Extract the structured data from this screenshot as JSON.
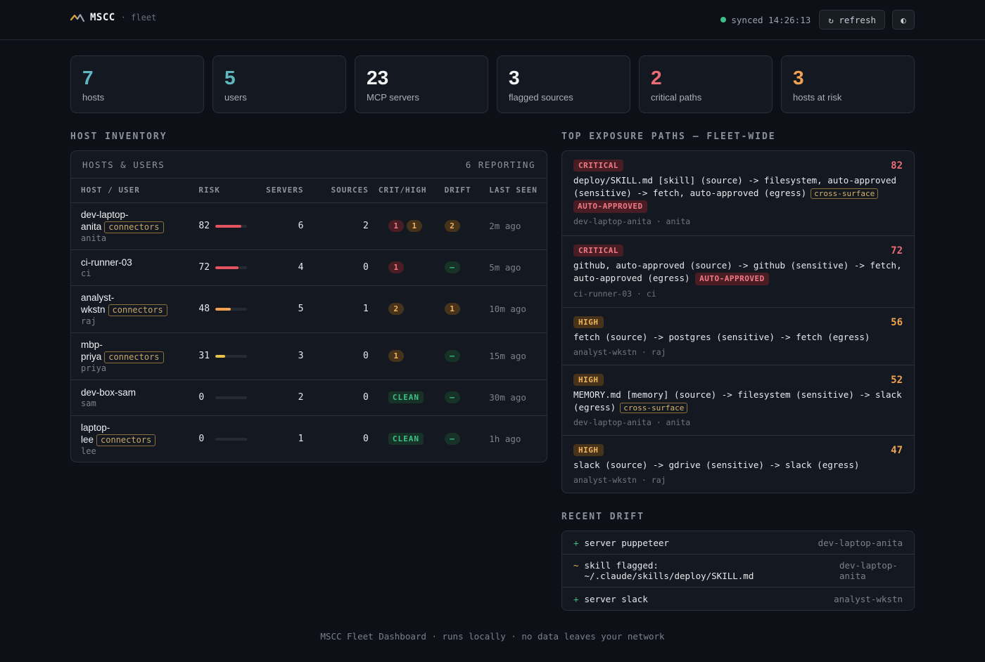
{
  "header": {
    "brand": "MSCC",
    "context": "· fleet",
    "sync_label": "synced 14:26:13",
    "refresh_label": "↻ refresh",
    "theme_icon": "◐"
  },
  "stats": [
    {
      "value": "7",
      "label": "hosts",
      "color": "#5fb8c0"
    },
    {
      "value": "5",
      "label": "users",
      "color": "#5fb8c0"
    },
    {
      "value": "23",
      "label": "MCP servers",
      "color": "#f2f3f5"
    },
    {
      "value": "3",
      "label": "flagged sources",
      "color": "#f2f3f5"
    },
    {
      "value": "2",
      "label": "critical paths",
      "color": "#ec6b74"
    },
    {
      "value": "3",
      "label": "hosts at risk",
      "color": "#f0a250"
    }
  ],
  "host_inventory": {
    "section_title": "HOST INVENTORY",
    "panel_title": "HOSTS & USERS",
    "reporting": "6 REPORTING",
    "columns": [
      "HOST / USER",
      "RISK",
      "SERVERS",
      "SOURCES",
      "CRIT/HIGH",
      "DRIFT",
      "LAST SEEN"
    ],
    "rows": [
      {
        "host_l1": "dev-laptop-",
        "host_l2": "anita",
        "tag": "connectors",
        "user": "anita",
        "risk": "82",
        "risk_level": 0.82,
        "risk_color": "#e5535f",
        "servers": "6",
        "sources": "2",
        "crit": "1",
        "high": "1",
        "drift": "2",
        "seen": "2m ago"
      },
      {
        "host_l1": "ci-runner-03",
        "host_l2": "",
        "tag": "",
        "user": "ci",
        "risk": "72",
        "risk_level": 0.72,
        "risk_color": "#e5535f",
        "servers": "4",
        "sources": "0",
        "crit": "1",
        "high": "",
        "drift": "–",
        "seen": "5m ago"
      },
      {
        "host_l1": "analyst-",
        "host_l2": "wkstn",
        "tag": "connectors",
        "user": "raj",
        "risk": "48",
        "risk_level": 0.48,
        "risk_color": "#f0a250",
        "servers": "5",
        "sources": "1",
        "crit": "",
        "high": "2",
        "drift": "1",
        "seen": "10m ago"
      },
      {
        "host_l1": "mbp-",
        "host_l2": "priya",
        "tag": "connectors",
        "user": "priya",
        "risk": "31",
        "risk_level": 0.31,
        "risk_color": "#e8c24a",
        "servers": "3",
        "sources": "0",
        "crit": "",
        "high": "1",
        "drift": "–",
        "seen": "15m ago"
      },
      {
        "host_l1": "dev-box-sam",
        "host_l2": "",
        "tag": "",
        "user": "sam",
        "risk": "0",
        "risk_level": 0,
        "risk_color": "#3fbf86",
        "servers": "2",
        "sources": "0",
        "crit": "",
        "high": "",
        "clean": "CLEAN",
        "drift": "–",
        "seen": "30m ago"
      },
      {
        "host_l1": "laptop-",
        "host_l2": "lee",
        "tag": "connectors",
        "user": "lee",
        "risk": "0",
        "risk_level": 0,
        "risk_color": "#3fbf86",
        "servers": "1",
        "sources": "0",
        "crit": "",
        "high": "",
        "clean": "CLEAN",
        "drift": "–",
        "seen": "1h ago"
      }
    ]
  },
  "exposure_paths": {
    "section_title": "TOP EXPOSURE PATHS — FLEET-WIDE",
    "items": [
      {
        "severity": "CRITICAL",
        "sev_class": "critical",
        "score": "82",
        "score_color": "#ec6b74",
        "text": "deploy/SKILL.md [skill] (source) -> filesystem, auto-approved (sensitive) -> fetch, auto-approved (egress)",
        "cross": "cross-surface",
        "auto": "AUTO-APPROVED",
        "meta": "dev-laptop-anita · anita"
      },
      {
        "severity": "CRITICAL",
        "sev_class": "critical",
        "score": "72",
        "score_color": "#ec6b74",
        "text": "github, auto-approved (source) -> github (sensitive) -> fetch, auto-approved (egress)",
        "cross": "",
        "auto": "AUTO-APPROVED",
        "meta": "ci-runner-03 · ci"
      },
      {
        "severity": "HIGH",
        "sev_class": "high",
        "score": "56",
        "score_color": "#f0a250",
        "text": "fetch (source) -> postgres (sensitive) -> fetch (egress)",
        "cross": "",
        "auto": "",
        "meta": "analyst-wkstn · raj"
      },
      {
        "severity": "HIGH",
        "sev_class": "high",
        "score": "52",
        "score_color": "#f0a250",
        "text": "MEMORY.md [memory] (source) -> filesystem (sensitive) -> slack (egress)",
        "cross": "cross-surface",
        "auto": "",
        "meta": "dev-laptop-anita · anita"
      },
      {
        "severity": "HIGH",
        "sev_class": "high",
        "score": "47",
        "score_color": "#f0a250",
        "text": "slack (source) -> gdrive (sensitive) -> slack (egress)",
        "cross": "",
        "auto": "",
        "meta": "analyst-wkstn · raj"
      }
    ]
  },
  "recent_drift": {
    "section_title": "RECENT DRIFT",
    "items": [
      {
        "symbol": "+",
        "kind": "add",
        "text_l1": "server puppeteer",
        "text_l2": "",
        "host_l1": "dev-laptop-anita",
        "host_l2": ""
      },
      {
        "symbol": "~",
        "kind": "mod",
        "text_l1": "skill flagged:",
        "text_l2": "~/.claude/skills/deploy/SKILL.md",
        "host_l1": "dev-laptop-",
        "host_l2": "anita"
      },
      {
        "symbol": "+",
        "kind": "add",
        "text_l1": "server slack",
        "text_l2": "",
        "host_l1": "analyst-wkstn",
        "host_l2": ""
      }
    ]
  },
  "footer": "MSCC Fleet Dashboard · runs locally · no data leaves your network"
}
